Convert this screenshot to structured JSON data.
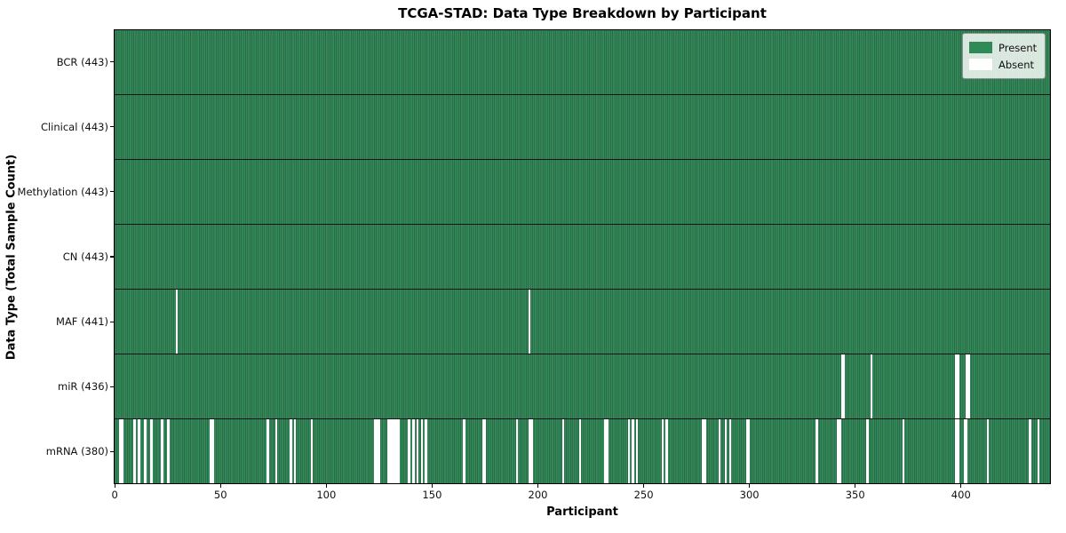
{
  "chart": {
    "title": "TCGA-STAD: Data Type Breakdown by Participant",
    "xlabel": "Participant",
    "ylabel": "Data Type (Total Sample Count)"
  },
  "legend": {
    "items": [
      {
        "label": "Present",
        "color": "#2E8B57"
      },
      {
        "label": "Absent",
        "color": "#FFFFFF"
      }
    ]
  },
  "colors": {
    "present_fill": "#348a5a",
    "present_edge": "#1c4a30",
    "absent": "#ffffff",
    "row_separator": "#141414",
    "spine": "#000000"
  },
  "chart_data": {
    "type": "heatmap",
    "title": "TCGA-STAD: Data Type Breakdown by Participant",
    "xlabel": "Participant",
    "ylabel": "Data Type (Total Sample Count)",
    "legend": [
      "Present",
      "Absent"
    ],
    "legend_position": "upper right",
    "n_participants": 443,
    "xlim": [
      -0.5,
      442.5
    ],
    "x_ticks": [
      0,
      50,
      100,
      150,
      200,
      250,
      300,
      350,
      400
    ],
    "rows": [
      {
        "name": "BCR",
        "label": "BCR (443)",
        "present_count": 443,
        "absent_participants": []
      },
      {
        "name": "Clinical",
        "label": "Clinical (443)",
        "present_count": 443,
        "absent_participants": []
      },
      {
        "name": "Methylation",
        "label": "Methylation (443)",
        "present_count": 443,
        "absent_participants": []
      },
      {
        "name": "CN",
        "label": "CN (443)",
        "present_count": 443,
        "absent_participants": []
      },
      {
        "name": "MAF",
        "label": "MAF (441)",
        "present_count": 441,
        "absent_participants": [
          29,
          196
        ]
      },
      {
        "name": "miR",
        "label": "miR (436)",
        "present_count": 436,
        "absent_participants": [
          344,
          345,
          358,
          398,
          399,
          403,
          404
        ]
      },
      {
        "name": "mRNA",
        "label": "mRNA (380)",
        "present_count": 380,
        "absent_participants": [
          2,
          3,
          9,
          11,
          14,
          17,
          22,
          25,
          45,
          46,
          72,
          76,
          83,
          85,
          93,
          123,
          124,
          125,
          129,
          130,
          131,
          132,
          133,
          134,
          139,
          141,
          143,
          145,
          147,
          165,
          174,
          175,
          190,
          196,
          197,
          212,
          220,
          232,
          233,
          243,
          245,
          247,
          259,
          261,
          278,
          279,
          286,
          289,
          291,
          299,
          300,
          332,
          342,
          343,
          356,
          373,
          398,
          399,
          402,
          403,
          413,
          433,
          437
        ]
      }
    ]
  }
}
